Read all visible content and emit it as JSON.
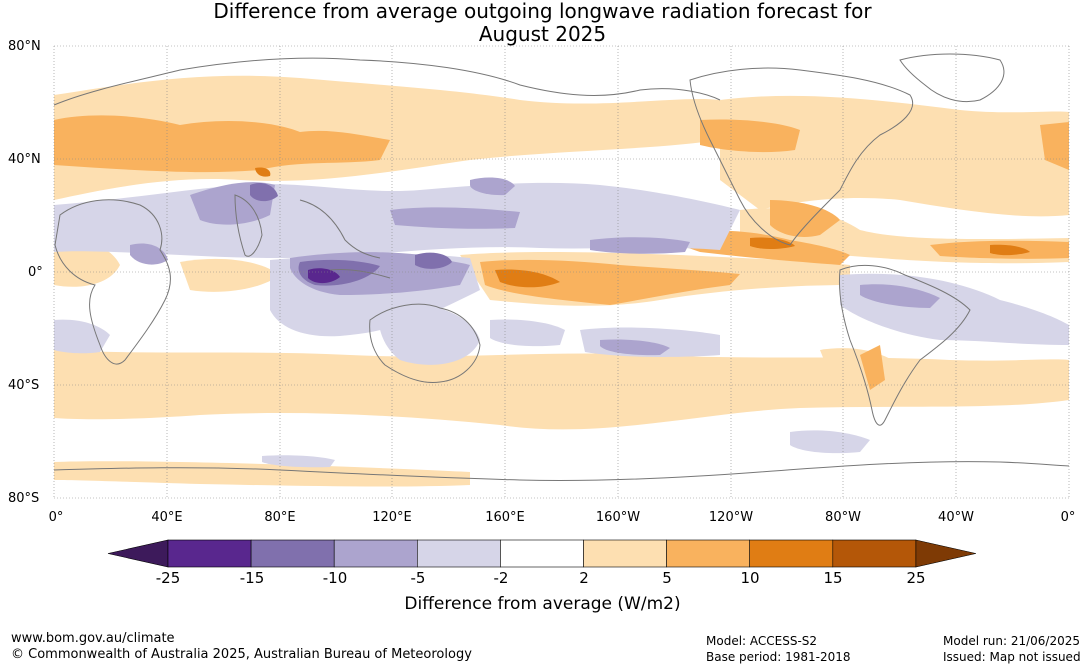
{
  "title_line1": "Difference from average outgoing longwave radiation forecast for",
  "title_line2": "August 2025",
  "lat_labels": [
    "80°N",
    "40°N",
    "0°",
    "40°S",
    "80°S"
  ],
  "lon_labels": [
    "0°",
    "40°E",
    "80°E",
    "120°E",
    "160°E",
    "160°W",
    "120°W",
    "80°W",
    "40°W",
    "0°"
  ],
  "colorbar": {
    "ticks": [
      "-25",
      "-15",
      "-10",
      "-5",
      "-2",
      "2",
      "5",
      "10",
      "15",
      "25"
    ],
    "colors": [
      "#3d1a5b",
      "#59278e",
      "#8070ad",
      "#aca4ce",
      "#d6d5e8",
      "#ffffff",
      "#fddfb1",
      "#f9b25e",
      "#e07d14",
      "#b45708",
      "#7e3a05"
    ],
    "label": "Difference from average (W/m2)"
  },
  "footer": {
    "website": "www.bom.gov.au/climate",
    "copyright": "© Commonwealth of Australia 2025, Australian Bureau of Meteorology",
    "model": "Model: ACCESS-S2",
    "base_period": "Base period: 1981-2018",
    "model_run": "Model run: 21/06/2025",
    "issued": "Issued: Map not issued"
  }
}
